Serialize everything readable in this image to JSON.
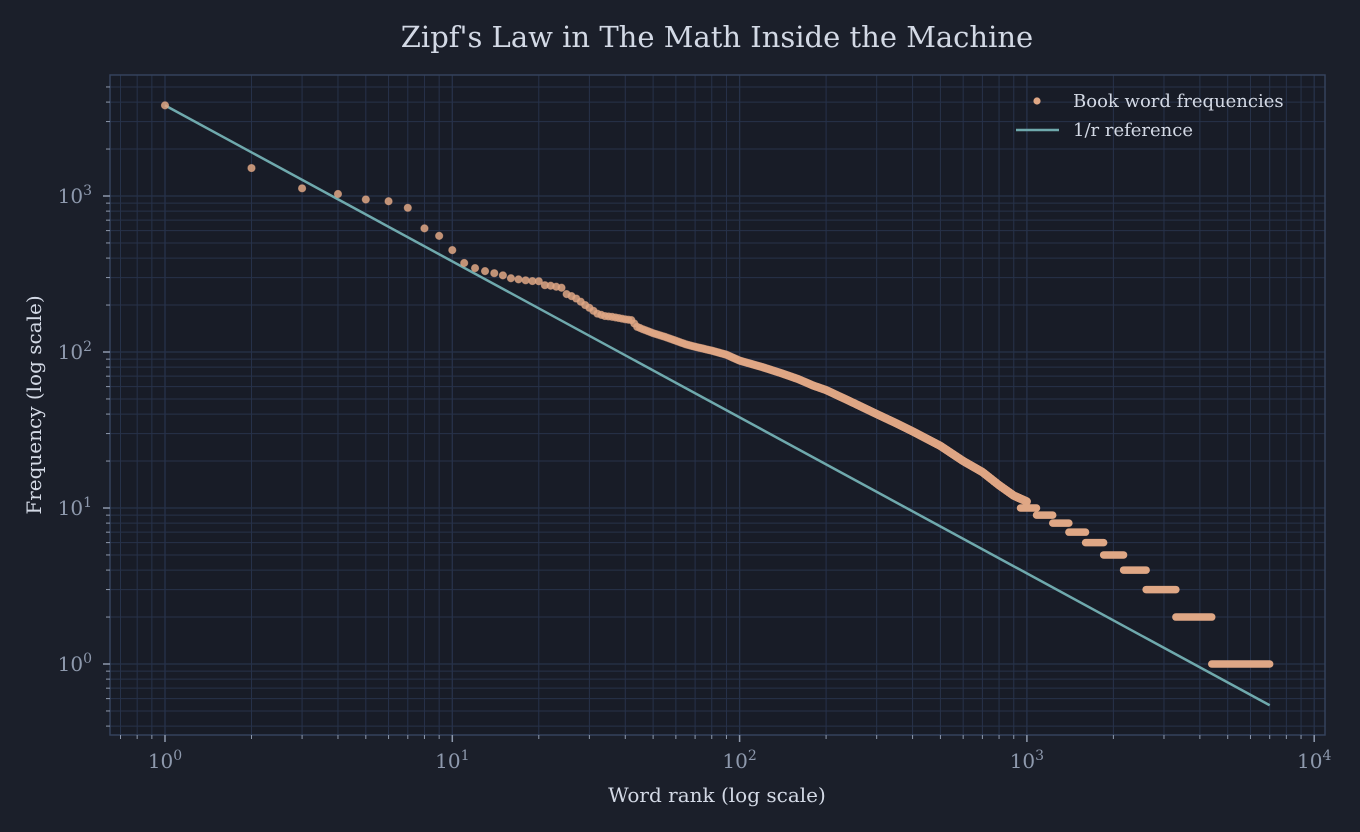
{
  "chart_data": {
    "type": "scatter",
    "title": "Zipf's Law in The Math Inside the Machine",
    "xlabel": "Word rank (log scale)",
    "ylabel": "Frequency (log scale)",
    "xscale": "log",
    "yscale": "log",
    "xlim": [
      0.65,
      11000
    ],
    "ylim": [
      0.36,
      6000
    ],
    "grid": true,
    "legend_position": "upper right",
    "x_ticks": [
      {
        "base": "10",
        "exp": "0",
        "value": 1
      },
      {
        "base": "10",
        "exp": "1",
        "value": 10
      },
      {
        "base": "10",
        "exp": "2",
        "value": 100
      },
      {
        "base": "10",
        "exp": "3",
        "value": 1000
      },
      {
        "base": "10",
        "exp": "4",
        "value": 10000
      }
    ],
    "y_ticks": [
      {
        "base": "10",
        "exp": "0",
        "value": 1
      },
      {
        "base": "10",
        "exp": "1",
        "value": 10
      },
      {
        "base": "10",
        "exp": "2",
        "value": 100
      },
      {
        "base": "10",
        "exp": "3",
        "value": 1000
      }
    ],
    "series": [
      {
        "name": "Book word frequencies",
        "kind": "scatter",
        "color": "#dfa785",
        "points": [
          [
            1,
            3810
          ],
          [
            2,
            1510
          ],
          [
            3,
            1120
          ],
          [
            4,
            1030
          ],
          [
            5,
            950
          ],
          [
            6,
            925
          ],
          [
            7,
            840
          ],
          [
            8,
            620
          ],
          [
            9,
            555
          ],
          [
            10,
            450
          ],
          [
            11,
            372
          ],
          [
            12,
            345
          ],
          [
            13,
            330
          ],
          [
            14,
            320
          ],
          [
            15,
            310
          ],
          [
            16,
            297
          ],
          [
            17,
            292
          ],
          [
            18,
            288
          ],
          [
            19,
            285
          ],
          [
            20,
            284
          ],
          [
            21,
            268
          ],
          [
            22,
            266
          ],
          [
            23,
            262
          ],
          [
            24,
            258
          ],
          [
            25,
            235
          ],
          [
            26,
            228
          ],
          [
            27,
            220
          ],
          [
            28,
            210
          ],
          [
            29,
            200
          ],
          [
            30,
            192
          ],
          [
            32,
            176
          ],
          [
            34,
            170
          ],
          [
            36,
            168
          ],
          [
            38,
            165
          ],
          [
            40,
            162
          ],
          [
            42,
            160
          ],
          [
            44,
            145
          ],
          [
            46,
            140
          ],
          [
            48,
            136
          ],
          [
            50,
            132
          ],
          [
            55,
            125
          ],
          [
            60,
            118
          ],
          [
            65,
            112
          ],
          [
            70,
            108
          ],
          [
            80,
            102
          ],
          [
            90,
            96
          ],
          [
            100,
            88
          ],
          [
            120,
            80
          ],
          [
            140,
            73
          ],
          [
            160,
            67
          ],
          [
            180,
            61
          ],
          [
            200,
            57
          ],
          [
            250,
            47
          ],
          [
            300,
            40
          ],
          [
            350,
            35
          ],
          [
            400,
            31
          ],
          [
            500,
            25
          ],
          [
            600,
            20
          ],
          [
            700,
            17
          ],
          [
            800,
            14
          ],
          [
            900,
            12
          ],
          [
            1000,
            11
          ]
        ],
        "plateaus": [
          {
            "freq": 10,
            "rank_from": 950,
            "rank_to": 1080
          },
          {
            "freq": 9,
            "rank_from": 1080,
            "rank_to": 1230
          },
          {
            "freq": 8,
            "rank_from": 1230,
            "rank_to": 1400
          },
          {
            "freq": 7,
            "rank_from": 1400,
            "rank_to": 1600
          },
          {
            "freq": 6,
            "rank_from": 1600,
            "rank_to": 1850
          },
          {
            "freq": 5,
            "rank_from": 1850,
            "rank_to": 2170
          },
          {
            "freq": 4,
            "rank_from": 2170,
            "rank_to": 2600
          },
          {
            "freq": 3,
            "rank_from": 2600,
            "rank_to": 3300
          },
          {
            "freq": 2,
            "rank_from": 3300,
            "rank_to": 4400
          },
          {
            "freq": 1,
            "rank_from": 4400,
            "rank_to": 7000
          }
        ]
      },
      {
        "name": "1/r reference",
        "kind": "line",
        "color": "#6fa9ad",
        "formula": "f = 3810 / r",
        "x": [
          1,
          7000
        ],
        "y": [
          3810,
          0.544
        ]
      }
    ]
  },
  "colors": {
    "background": "#1b1f2a",
    "plot_background": "#181c27",
    "grid": "#27324a",
    "spine": "#34425c",
    "text": "#d3d9e5",
    "tick_text": "#8e99ad",
    "scatter": "#dfa785",
    "line": "#6fa9ad"
  }
}
